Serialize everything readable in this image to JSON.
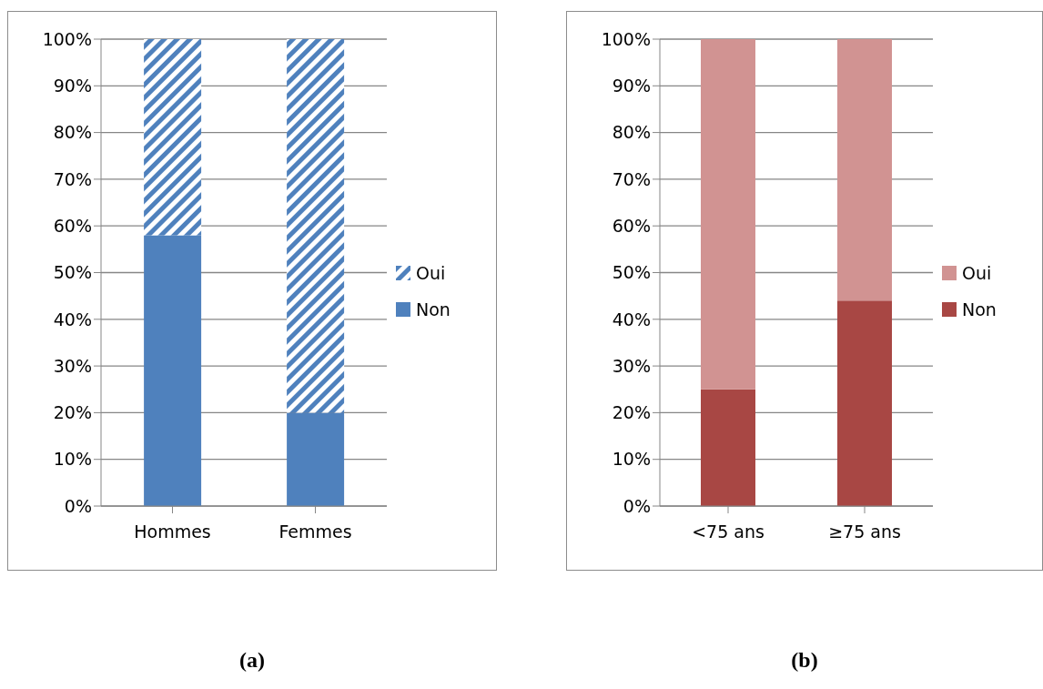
{
  "chart_data": [
    {
      "type": "bar",
      "stacked": true,
      "categories": [
        "Hommes",
        "Femmes"
      ],
      "series": [
        {
          "name": "Non",
          "color": "#4f81bd",
          "values": [
            58,
            20
          ]
        },
        {
          "name": "Oui",
          "color": "#4f81bd",
          "values": [
            42,
            80
          ]
        }
      ],
      "ylim": [
        0,
        100
      ],
      "yticks": [
        {
          "value": 0,
          "label": "0%"
        },
        {
          "value": 10,
          "label": "10%"
        },
        {
          "value": 20,
          "label": "20%"
        },
        {
          "value": 30,
          "label": "30%"
        },
        {
          "value": 40,
          "label": "40%"
        },
        {
          "value": 50,
          "label": "50%"
        },
        {
          "value": 60,
          "label": "60%"
        },
        {
          "value": 70,
          "label": "70%"
        },
        {
          "value": 80,
          "label": "80%"
        },
        {
          "value": 90,
          "label": "90%"
        },
        {
          "value": 100,
          "label": "100%"
        }
      ],
      "grid": "y",
      "legend": "right",
      "annotations": [
        "(a)"
      ]
    },
    {
      "type": "bar",
      "stacked": true,
      "categories": [
        "<75 ans",
        "≥75 ans"
      ],
      "series": [
        {
          "name": "Non",
          "color": "#a84744",
          "values": [
            25,
            44
          ]
        },
        {
          "name": "Oui",
          "color": "#d19392",
          "values": [
            75,
            56
          ]
        }
      ],
      "ylim": [
        0,
        100
      ],
      "yticks": [
        {
          "value": 0,
          "label": "0%"
        },
        {
          "value": 10,
          "label": "10%"
        },
        {
          "value": 20,
          "label": "20%"
        },
        {
          "value": 30,
          "label": "30%"
        },
        {
          "value": 40,
          "label": "40%"
        },
        {
          "value": 50,
          "label": "50%"
        },
        {
          "value": 60,
          "label": "60%"
        },
        {
          "value": 70,
          "label": "70%"
        },
        {
          "value": 80,
          "label": "80%"
        },
        {
          "value": 90,
          "label": "90%"
        },
        {
          "value": 100,
          "label": "100%"
        }
      ],
      "grid": "y",
      "legend": "right",
      "annotations": [
        "(b)"
      ]
    }
  ]
}
